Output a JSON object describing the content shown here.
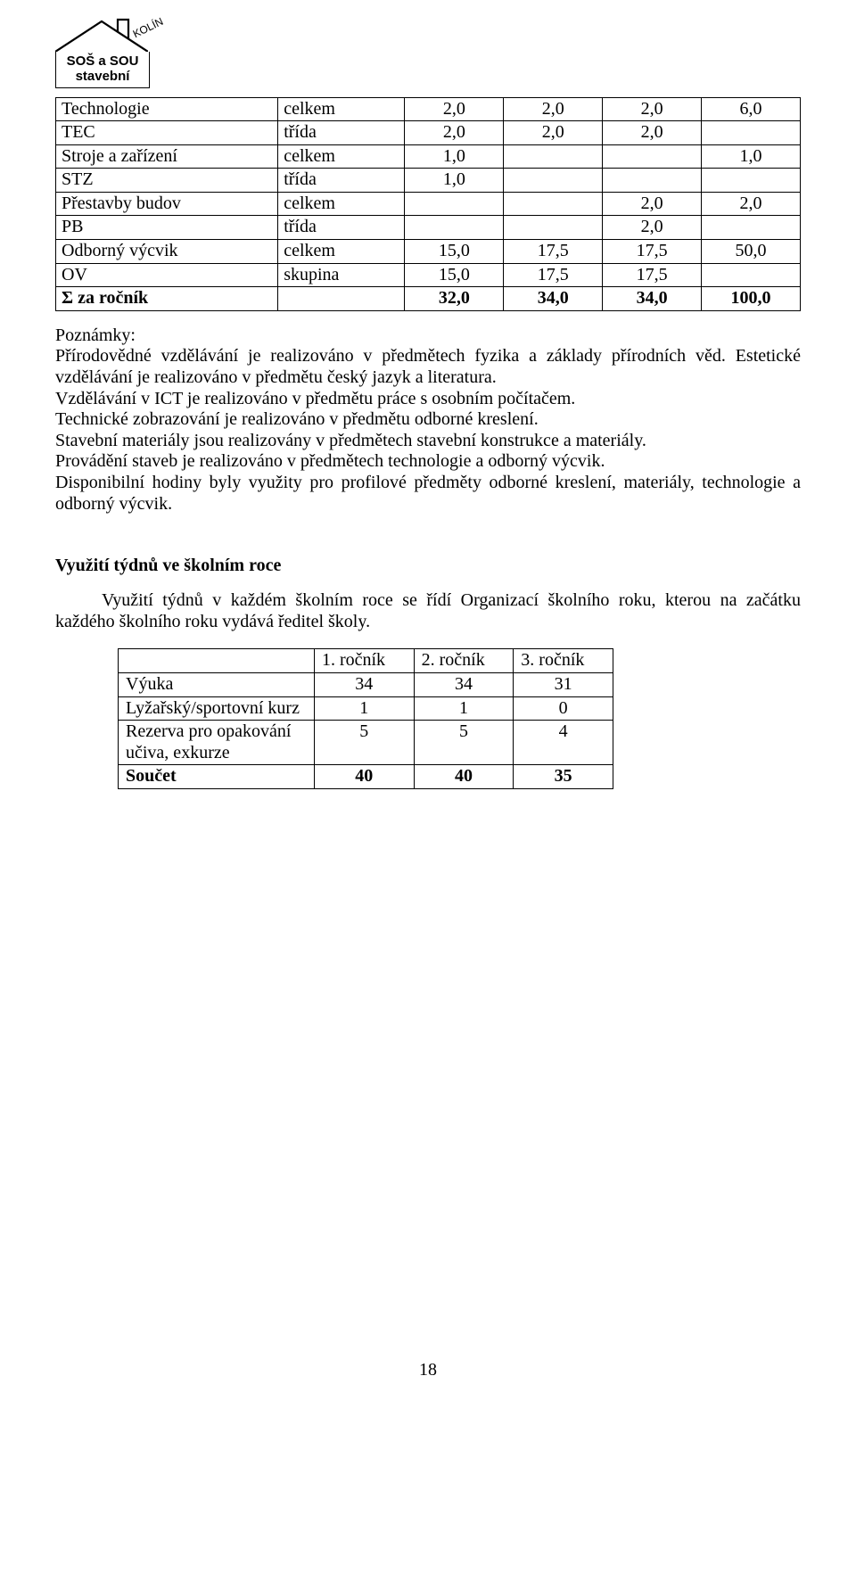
{
  "logo": {
    "kolin": "KOLÍN",
    "line1": "SOŠ a SOU",
    "line2": "stavební"
  },
  "curriculum": {
    "rows": [
      {
        "label1": "Technologie",
        "label2_bold": false,
        "label2": "celkem",
        "c1": "2,0",
        "c2": "2,0",
        "c3": "2,0",
        "c4": "6,0"
      },
      {
        "label1": "TEC",
        "label2_bold": false,
        "label2": "třída",
        "c1": "2,0",
        "c2": "2,0",
        "c3": "2,0",
        "c4": ""
      },
      {
        "label1": "Stroje a zařízení",
        "label2_bold": false,
        "label2": "celkem",
        "c1": "1,0",
        "c2": "",
        "c3": "",
        "c4": "1,0"
      },
      {
        "label1": "STZ",
        "label2_bold": false,
        "label2": "třída",
        "c1": "1,0",
        "c2": "",
        "c3": "",
        "c4": ""
      },
      {
        "label1": "Přestavby budov",
        "label2_bold": false,
        "label2": "celkem",
        "c1": "",
        "c2": "",
        "c3": "2,0",
        "c4": "2,0"
      },
      {
        "label1": "PB",
        "label2_bold": false,
        "label2": "třída",
        "c1": "",
        "c2": "",
        "c3": "2,0",
        "c4": ""
      },
      {
        "label1": "Odborný výcvik",
        "label2_bold": false,
        "label2": "celkem",
        "c1": "15,0",
        "c2": "17,5",
        "c3": "17,5",
        "c4": "50,0"
      },
      {
        "label1": "OV",
        "label2_bold": false,
        "label2": "skupina",
        "c1": "15,0",
        "c2": "17,5",
        "c3": "17,5",
        "c4": ""
      }
    ],
    "sum": {
      "label1": "Σ za ročník",
      "label2": "",
      "c1": "32,0",
      "c2": "34,0",
      "c3": "34,0",
      "c4": "100,0"
    }
  },
  "notes": {
    "heading": "Poznámky:",
    "lines": [
      "Přírodovědné vzdělávání je realizováno v předmětech fyzika a základy přírodních věd. Estetické vzdělávání je realizováno v předmětu český jazyk a literatura.",
      "Vzdělávání v ICT je realizováno v předmětu práce s osobním počítačem.",
      "Technické zobrazování je realizováno v předmětu odborné kreslení.",
      "Stavební materiály jsou realizovány v předmětech stavební konstrukce a materiály.",
      "Provádění staveb je realizováno v předmětech technologie a odborný výcvik.",
      "Disponibilní hodiny byly využity pro profilové předměty odborné kreslení, materiály, technologie a odborný výcvik."
    ]
  },
  "weeks": {
    "heading": "Využití týdnů ve školním roce",
    "para": "Využití týdnů v každém školním roce se řídí Organizací školního roku, kterou na začátku každého školního roku vydává ředitel školy.",
    "headers": [
      "1.  ročník",
      "2. ročník",
      "3. ročník"
    ],
    "rows": [
      {
        "label": "Výuka",
        "c1": "34",
        "c2": "34",
        "c3": "31"
      },
      {
        "label": "Lyžařský/sportovní kurz",
        "c1": "1",
        "c2": "1",
        "c3": "0"
      },
      {
        "label": "Rezerva pro opakování učiva, exkurze",
        "c1": "5",
        "c2": "5",
        "c3": "4"
      }
    ],
    "sum": {
      "label": "Součet",
      "c1": "40",
      "c2": "40",
      "c3": "35"
    }
  },
  "page_number": "18"
}
